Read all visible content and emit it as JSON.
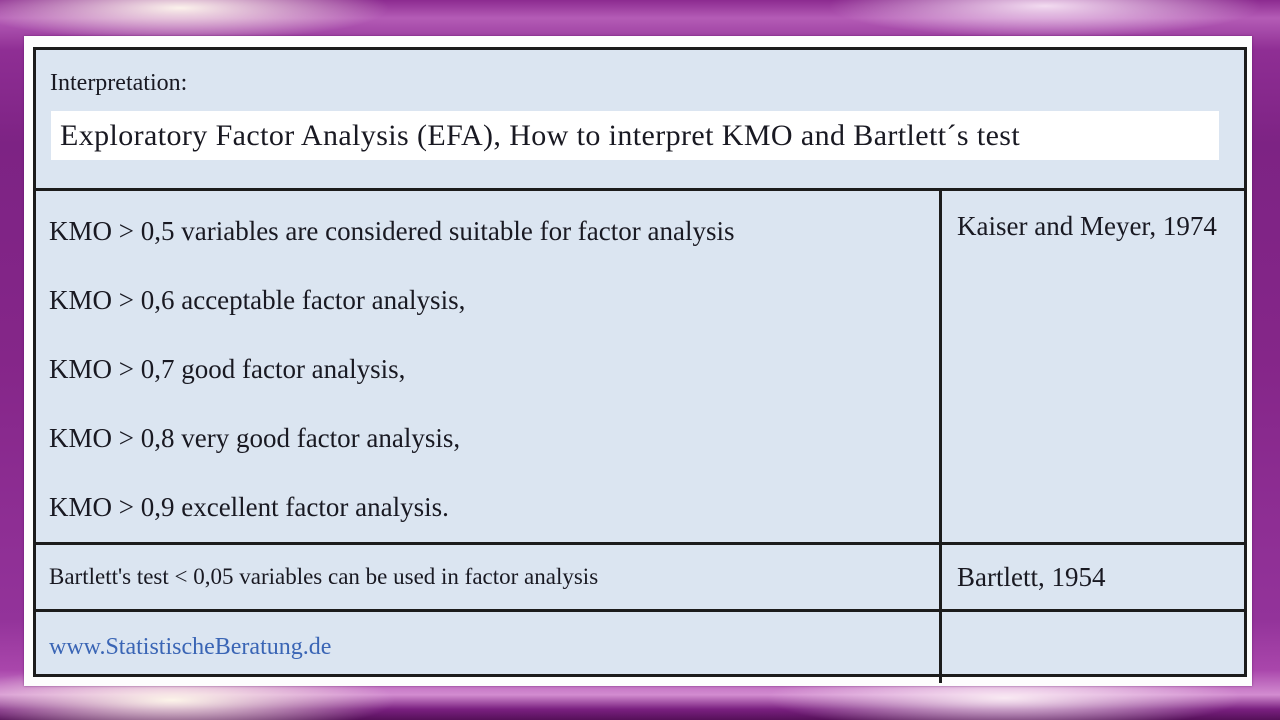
{
  "slide": {
    "header": {
      "label": "Interpretation:",
      "title": "Exploratory Factor Analysis (EFA), How to interpret KMO and Bartlett´s test"
    },
    "kmo": {
      "lines": [
        "KMO > 0,5 variables are considered suitable for factor analysis",
        "KMO > 0,6 acceptable factor analysis,",
        "KMO > 0,7 good factor analysis,",
        "KMO > 0,8 very good factor analysis,",
        "KMO > 0,9 excellent factor analysis."
      ],
      "source": "Kaiser and Meyer, 1974"
    },
    "bartlett": {
      "text": "Bartlett's test < 0,05 variables can be used in factor analysis",
      "source": "Bartlett, 1954"
    },
    "footer": {
      "website": "www.StatistischeBeratung.de",
      "right_cell": ""
    },
    "colors": {
      "table_background": "#dbe5f1",
      "frame_purple": "#852689",
      "sheen_highlight": "#fff8ee",
      "title_highlight": "#ffffff",
      "link_blue": "#3a65b5",
      "border_dark": "#1c1c1c",
      "text": "#191922"
    }
  }
}
